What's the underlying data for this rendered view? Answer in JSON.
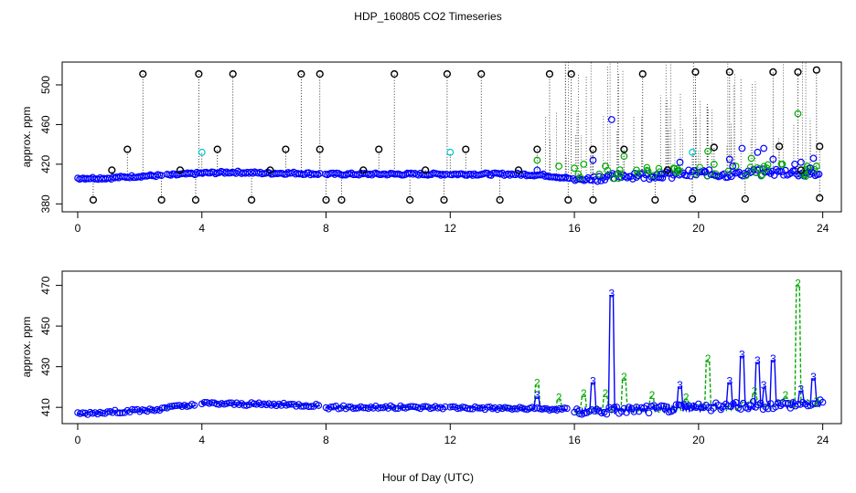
{
  "chart_data": {
    "title": "HDP_160805  CO2 Timeseries",
    "xlabel": "Hour of Day (UTC)",
    "panels": [
      {
        "type": "scatter",
        "ylabel": "approx. ppm",
        "xlim": [
          -0.5,
          24.6
        ],
        "ylim": [
          372,
          523
        ],
        "xticks": [
          0,
          4,
          8,
          12,
          16,
          20,
          24
        ],
        "yticks": [
          380,
          420,
          460,
          500
        ],
        "baseline_series": {
          "name": "Blue",
          "color": "#0000ff",
          "x": [
            0,
            1,
            2,
            3,
            4,
            5,
            6,
            7,
            8,
            9,
            10,
            11,
            12,
            13,
            14,
            15,
            15.8,
            16,
            17,
            18,
            19,
            20,
            21,
            22,
            23,
            23.8
          ],
          "y": [
            406,
            406,
            408,
            409,
            411,
            412,
            411,
            411,
            410,
            410,
            410,
            410,
            410,
            410,
            410,
            409,
            406,
            404,
            407,
            409,
            409,
            411,
            410,
            412,
            412,
            410
          ]
        },
        "outliers_black": {
          "color": "#000000",
          "x": [
            0.5,
            1.1,
            1.6,
            2.1,
            2.7,
            3.3,
            3.8,
            3.9,
            4.5,
            5.0,
            5.6,
            6.2,
            6.7,
            7.2,
            7.8,
            7.8,
            8.0,
            8.5,
            9.2,
            9.7,
            10.2,
            10.7,
            11.2,
            11.8,
            11.9,
            12.5,
            13.0,
            13.6,
            14.2,
            14.8,
            15.2,
            15.8,
            15.9,
            16.6,
            16.6,
            17.6,
            18.2,
            18.6,
            19.0,
            19.8,
            19.9,
            20.5,
            21.0,
            21.5,
            22.4,
            22.6,
            23.2,
            23.3,
            23.8,
            23.9,
            23.9
          ],
          "y": [
            384,
            414,
            435,
            511,
            384,
            414,
            384,
            511,
            435,
            511,
            384,
            414,
            435,
            511,
            511,
            435,
            384,
            384,
            414,
            435,
            511,
            384,
            414,
            384,
            511,
            435,
            511,
            384,
            414,
            435,
            511,
            384,
            511,
            435,
            384,
            435,
            511,
            384,
            414,
            385,
            513,
            437,
            513,
            385,
            513,
            438,
            513,
            414,
            515,
            386,
            438
          ]
        },
        "highlights_cyan": {
          "color": "#00c8c8",
          "x": [
            4.0,
            12.0,
            19.8
          ],
          "y": [
            432,
            432,
            432
          ]
        },
        "highlights_green": {
          "color": "#00aa00",
          "x": [
            14.8,
            15.5,
            16.0,
            16.3,
            16.8,
            17.0,
            17.6,
            18.0,
            19.2,
            20.3,
            20.5,
            21.2,
            21.7,
            22.2,
            22.7,
            23.2,
            23.5,
            23.8
          ],
          "y": [
            424,
            418,
            416,
            420,
            410,
            418,
            428,
            414,
            416,
            433,
            420,
            418,
            426,
            416,
            420,
            471,
            418,
            418
          ]
        },
        "highlights_blue_upper": {
          "color": "#0000ff",
          "x": [
            14.8,
            16.6,
            17.2,
            18.8,
            19.4,
            20.2,
            21.0,
            21.1,
            21.4,
            21.9,
            22.1,
            22.4,
            23.1,
            23.3,
            23.6,
            23.7
          ],
          "y": [
            414,
            424,
            465,
            410,
            422,
            412,
            425,
            418,
            436,
            432,
            436,
            425,
            420,
            422,
            416,
            426
          ]
        }
      },
      {
        "type": "line",
        "ylabel": "approx. ppm",
        "xlim": [
          -0.5,
          24.6
        ],
        "ylim": [
          402,
          477
        ],
        "xticks": [
          0,
          4,
          8,
          12,
          16,
          20,
          24
        ],
        "yticks": [
          410,
          430,
          450,
          470
        ],
        "series": [
          {
            "name": "2",
            "color": "#00aa00"
          },
          {
            "name": "3",
            "color": "#0000ff"
          }
        ],
        "segments": [
          {
            "x0": 0.0,
            "x1": 2.8,
            "y0": 407,
            "y1": 409
          },
          {
            "x0": 2.8,
            "x1": 3.8,
            "y0": 410,
            "y1": 411
          },
          {
            "x0": 4.0,
            "x1": 7.8,
            "y0": 412,
            "y1": 411
          },
          {
            "x0": 8.0,
            "x1": 11.9,
            "y0": 410,
            "y1": 410
          },
          {
            "x0": 12.0,
            "x1": 15.8,
            "y0": 410,
            "y1": 409
          },
          {
            "x0": 16.0,
            "x1": 24.0,
            "y0": 408,
            "y1": 412
          }
        ],
        "peaks_green": [
          {
            "x": 14.8,
            "y": 421,
            "label": "2"
          },
          {
            "x": 15.5,
            "y": 414,
            "label": "2"
          },
          {
            "x": 16.3,
            "y": 416,
            "label": "2"
          },
          {
            "x": 17.0,
            "y": 416,
            "label": "2"
          },
          {
            "x": 17.6,
            "y": 424,
            "label": "2"
          },
          {
            "x": 18.5,
            "y": 415,
            "label": "2"
          },
          {
            "x": 19.6,
            "y": 414,
            "label": "2"
          },
          {
            "x": 20.3,
            "y": 433,
            "label": "2"
          },
          {
            "x": 21.8,
            "y": 417,
            "label": "2"
          },
          {
            "x": 22.8,
            "y": 415,
            "label": "2"
          },
          {
            "x": 23.2,
            "y": 470,
            "label": "2"
          },
          {
            "x": 23.8,
            "y": 412,
            "label": "2"
          }
        ],
        "peaks_blue": [
          {
            "x": 14.8,
            "y": 415,
            "label": "3"
          },
          {
            "x": 16.6,
            "y": 422,
            "label": "3"
          },
          {
            "x": 17.2,
            "y": 465,
            "label": "3"
          },
          {
            "x": 19.4,
            "y": 420,
            "label": "3"
          },
          {
            "x": 21.0,
            "y": 422,
            "label": "3"
          },
          {
            "x": 21.4,
            "y": 435,
            "label": "3"
          },
          {
            "x": 21.9,
            "y": 432,
            "label": "3"
          },
          {
            "x": 22.1,
            "y": 420,
            "label": "3"
          },
          {
            "x": 22.4,
            "y": 433,
            "label": "3"
          },
          {
            "x": 23.3,
            "y": 418,
            "label": "3"
          },
          {
            "x": 23.7,
            "y": 424,
            "label": "3"
          }
        ]
      }
    ]
  }
}
